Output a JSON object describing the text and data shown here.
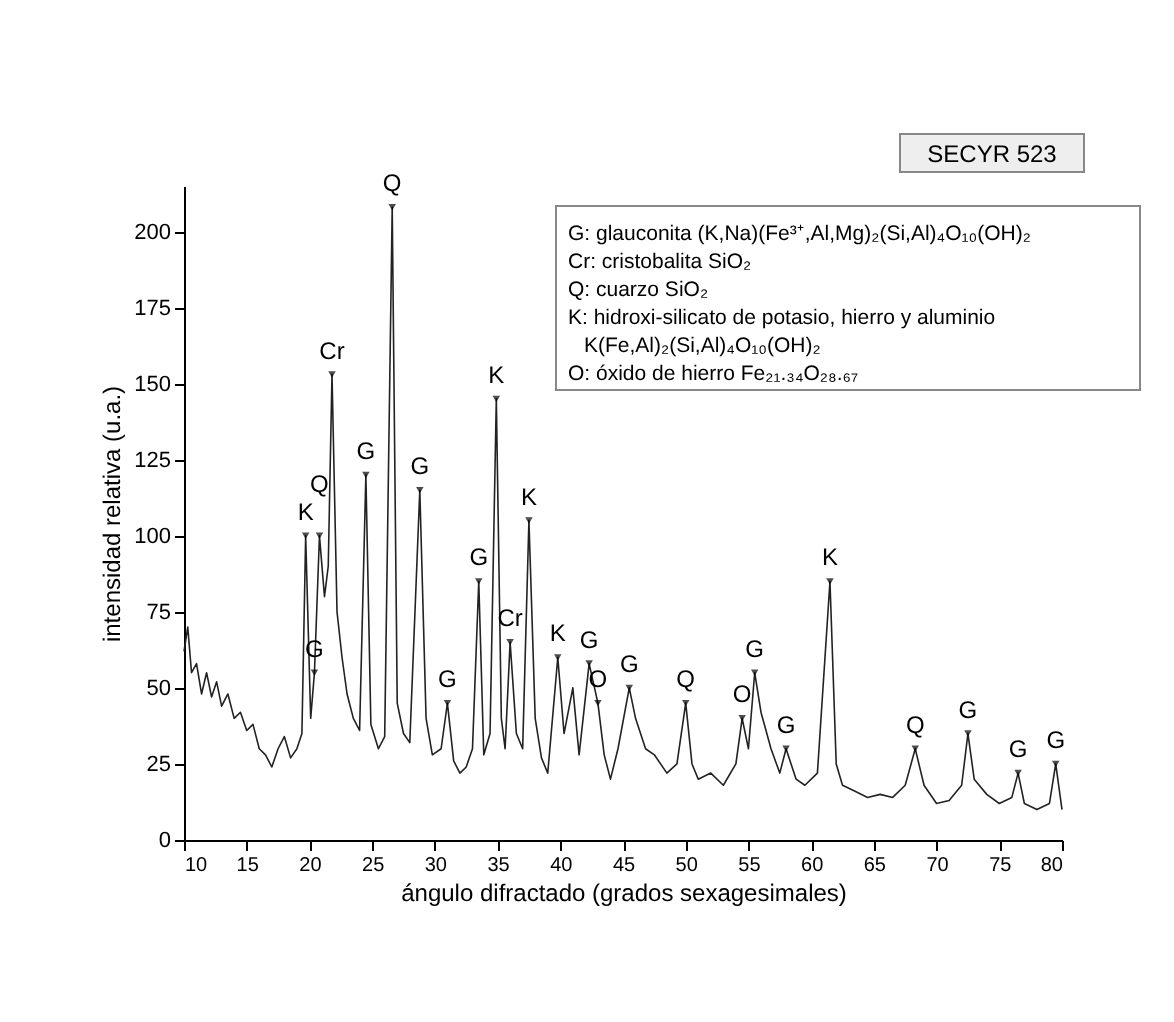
{
  "chart_data": {
    "type": "line",
    "xlabel": "ángulo difractado (grados sexagesimales)",
    "ylabel": "intensidad relativa (u.a.)",
    "xlim": [
      10,
      80
    ],
    "ylim": [
      0,
      215
    ],
    "xticks": [
      10,
      15,
      20,
      25,
      30,
      35,
      40,
      45,
      50,
      55,
      60,
      65,
      70,
      75,
      80
    ],
    "yticks": [
      0,
      25,
      50,
      75,
      100,
      125,
      150,
      175,
      200
    ],
    "grid": false,
    "series": [
      {
        "color": "#222222",
        "x": [
          10,
          10.3,
          10.6,
          11,
          11.4,
          11.8,
          12.2,
          12.6,
          13,
          13.5,
          14,
          14.5,
          15,
          15.5,
          16,
          16.5,
          17,
          17.5,
          18,
          18.5,
          19,
          19.4,
          19.7,
          20.1,
          20.4,
          20.8,
          21.2,
          21.5,
          21.8,
          22.2,
          22.6,
          23,
          23.5,
          24,
          24.5,
          24.9,
          25.5,
          26,
          26.6,
          27,
          27.5,
          28,
          28.8,
          29.3,
          29.8,
          30.5,
          31,
          31.5,
          32,
          32.5,
          33,
          33.5,
          33.9,
          34.4,
          34.9,
          35.3,
          35.6,
          36,
          36.5,
          37,
          37.5,
          38,
          38.5,
          39,
          39.8,
          40.3,
          41,
          41.5,
          42.3,
          43,
          43.5,
          44,
          44.6,
          45.5,
          46,
          46.8,
          47.5,
          48.5,
          49.3,
          50,
          50.5,
          51,
          52,
          53,
          54,
          54.5,
          55,
          55.5,
          56,
          56.8,
          57.5,
          58,
          58.8,
          59.5,
          60.5,
          61.5,
          62,
          62.5,
          63.5,
          64.5,
          65.5,
          66.5,
          67.5,
          68.3,
          69,
          70,
          71,
          72,
          72.5,
          73,
          74,
          75,
          76,
          76.5,
          77,
          78,
          79,
          79.5,
          80
        ],
        "values": [
          62,
          70,
          55,
          58,
          48,
          55,
          47,
          52,
          44,
          48,
          40,
          42,
          36,
          38,
          30,
          28,
          24,
          30,
          34,
          27,
          30,
          35,
          100,
          40,
          55,
          100,
          80,
          90,
          153,
          75,
          60,
          48,
          40,
          36,
          120,
          38,
          30,
          34,
          208,
          45,
          35,
          32,
          115,
          40,
          28,
          30,
          45,
          26,
          22,
          24,
          30,
          85,
          28,
          35,
          145,
          40,
          30,
          65,
          35,
          30,
          105,
          40,
          27,
          22,
          60,
          35,
          50,
          28,
          58,
          45,
          28,
          20,
          30,
          50,
          40,
          30,
          28,
          22,
          25,
          45,
          25,
          20,
          22,
          18,
          25,
          40,
          30,
          55,
          42,
          30,
          22,
          30,
          20,
          18,
          22,
          85,
          25,
          18,
          16,
          14,
          15,
          14,
          18,
          30,
          18,
          12,
          13,
          18,
          35,
          20,
          15,
          12,
          14,
          22,
          12,
          10,
          12,
          25,
          10
        ]
      }
    ],
    "annotations": [
      "SECYR 523",
      "G: glauconita (K,Na)(Fe³⁺,Al,Mg)₂(Si,Al)₄O₁₀(OH)₂",
      "Cr: cristobalita SiO₂",
      "Q: cuarzo SiO₂",
      "K: hidroxi-silicato de potasio, hierro y aluminio",
      "K(Fe,Al)₂(Si,Al)₄O₁₀(OH)₂",
      "O: óxido de hierro Fe₂₁.₃₄O₂₈.₆₇",
      {
        "text": "K",
        "x": 19.7,
        "y": 100
      },
      {
        "text": "G",
        "x": 20.4,
        "y": 55
      },
      {
        "text": "Q",
        "x": 20.8,
        "y": 100
      },
      {
        "text": "Cr",
        "x": 21.8,
        "y": 153
      },
      {
        "text": "G",
        "x": 24.5,
        "y": 120
      },
      {
        "text": "Q",
        "x": 26.6,
        "y": 208
      },
      {
        "text": "G",
        "x": 28.8,
        "y": 115
      },
      {
        "text": "G",
        "x": 31,
        "y": 45
      },
      {
        "text": "G",
        "x": 33.5,
        "y": 85
      },
      {
        "text": "K",
        "x": 34.9,
        "y": 145
      },
      {
        "text": "Cr",
        "x": 36,
        "y": 65
      },
      {
        "text": "K",
        "x": 37.5,
        "y": 105
      },
      {
        "text": "K",
        "x": 39.8,
        "y": 60
      },
      {
        "text": "G",
        "x": 42.3,
        "y": 58
      },
      {
        "text": "O",
        "x": 43,
        "y": 45
      },
      {
        "text": "G",
        "x": 45.5,
        "y": 50
      },
      {
        "text": "Q",
        "x": 50,
        "y": 45
      },
      {
        "text": "O",
        "x": 54.5,
        "y": 40
      },
      {
        "text": "G",
        "x": 55.5,
        "y": 55
      },
      {
        "text": "G",
        "x": 58,
        "y": 30
      },
      {
        "text": "K",
        "x": 61.5,
        "y": 85
      },
      {
        "text": "Q",
        "x": 68.3,
        "y": 30
      },
      {
        "text": "G",
        "x": 72.5,
        "y": 35
      },
      {
        "text": "G",
        "x": 76.5,
        "y": 22
      },
      {
        "text": "G",
        "x": 79.5,
        "y": 25
      }
    ]
  }
}
